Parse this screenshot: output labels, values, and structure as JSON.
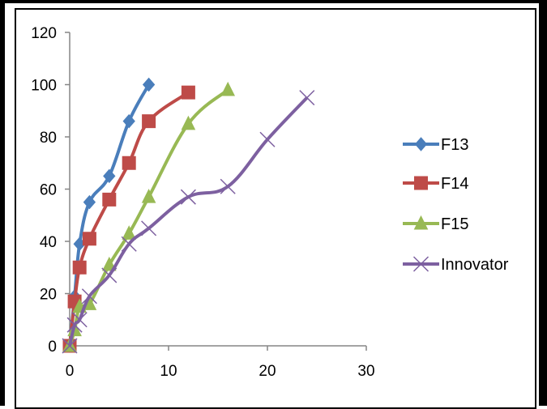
{
  "chart_data": {
    "type": "line",
    "title": "",
    "xlabel": "",
    "ylabel": "",
    "xlim": [
      0,
      30
    ],
    "ylim": [
      0,
      120
    ],
    "x_ticks": [
      "0",
      "10",
      "20",
      "30"
    ],
    "y_ticks": [
      "0",
      "20",
      "40",
      "60",
      "80",
      "100",
      "120"
    ],
    "grid": false,
    "legend_position": "right",
    "series": [
      {
        "name": "F13",
        "color": "#4a7ebb",
        "marker": "diamond",
        "points": [
          [
            0,
            0
          ],
          [
            0.5,
            19
          ],
          [
            1,
            39
          ],
          [
            2,
            55
          ],
          [
            4,
            65
          ],
          [
            6,
            86
          ],
          [
            8,
            100
          ]
        ]
      },
      {
        "name": "F14",
        "color": "#be4b48",
        "marker": "square",
        "points": [
          [
            0,
            0
          ],
          [
            0.5,
            17
          ],
          [
            1,
            30
          ],
          [
            2,
            41
          ],
          [
            4,
            56
          ],
          [
            6,
            70
          ],
          [
            8,
            86
          ],
          [
            12,
            97
          ]
        ]
      },
      {
        "name": "F15",
        "color": "#98b954",
        "marker": "triangle",
        "points": [
          [
            0,
            0
          ],
          [
            0.5,
            6
          ],
          [
            1,
            15
          ],
          [
            2,
            16
          ],
          [
            4,
            31
          ],
          [
            6,
            43
          ],
          [
            8,
            57
          ],
          [
            12,
            85
          ],
          [
            16,
            98
          ]
        ]
      },
      {
        "name": "Innovator",
        "color": "#7d60a0",
        "marker": "x",
        "points": [
          [
            0,
            0
          ],
          [
            0.5,
            8
          ],
          [
            1,
            10
          ],
          [
            2,
            19
          ],
          [
            4,
            27
          ],
          [
            6,
            39
          ],
          [
            8,
            45
          ],
          [
            12,
            57
          ],
          [
            16,
            61
          ],
          [
            20,
            79
          ],
          [
            24,
            95
          ]
        ]
      }
    ]
  }
}
